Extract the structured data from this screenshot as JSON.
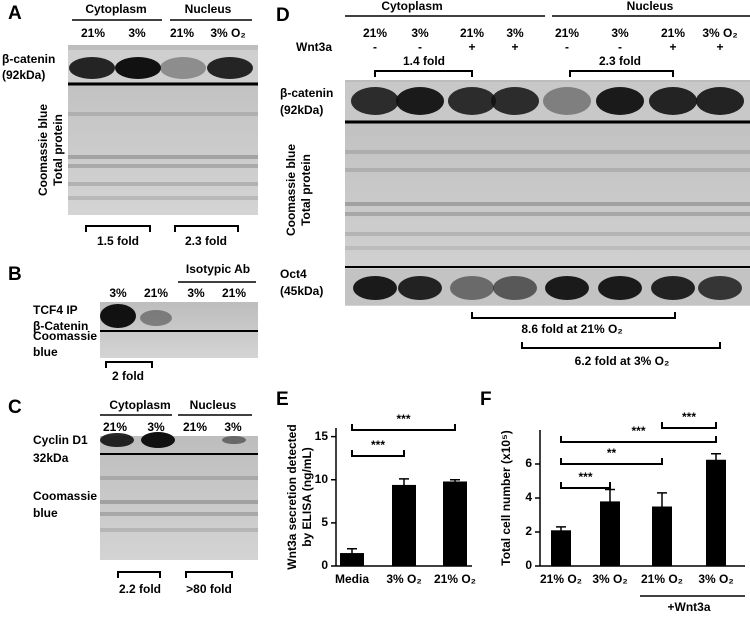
{
  "panels": {
    "A": {
      "label": "A",
      "headers": [
        "Cytoplasm",
        "Nucleus"
      ],
      "lanes": [
        "21%",
        "3%",
        "21%",
        "3% O₂"
      ],
      "rows": [
        "β-catenin",
        "(92kDa)"
      ],
      "stain": [
        "Coomassie blue",
        "Total protein"
      ],
      "folds": [
        "1.5 fold",
        "2.3 fold"
      ]
    },
    "B": {
      "label": "B",
      "headers": [
        "Isotypic Ab"
      ],
      "lanes": [
        "3%",
        "21%",
        "3%",
        "21%"
      ],
      "rows": [
        "TCF4 IP",
        "β-Catenin",
        "Coomassie",
        "blue"
      ],
      "folds": [
        "2 fold"
      ]
    },
    "C": {
      "label": "C",
      "headers": [
        "Cytoplasm",
        "Nucleus"
      ],
      "lanes": [
        "21%",
        "3%",
        "21%",
        "3%"
      ],
      "rows": [
        "Cyclin D1",
        "32kDa",
        "Coomassie",
        "blue"
      ],
      "folds": [
        "2.2 fold",
        ">80 fold"
      ]
    },
    "D": {
      "label": "D",
      "headers": [
        "Cytoplasm",
        "Nucleus"
      ],
      "lanes": [
        "21%",
        "3%",
        "21%",
        "3%",
        "21%",
        "3%",
        "21%",
        "3% O₂"
      ],
      "treatment": "Wnt3a",
      "signs": [
        "-",
        "-",
        "+",
        "+",
        "-",
        "-",
        "+",
        "+"
      ],
      "rows": [
        "β-catenin",
        "(92kDa)",
        "Oct4",
        "(45kDa)"
      ],
      "stain": [
        "Coomassie blue",
        "Total protein"
      ],
      "folds": [
        "1.4 fold",
        "2.3 fold",
        "8.6 fold at 21% O₂",
        "6.2 fold at 3% O₂"
      ]
    }
  },
  "chart_data": [
    {
      "type": "bar",
      "label": "E",
      "ylabel": [
        "Wnt3a secretion detected",
        "by ELISA (ng/mL)"
      ],
      "categories": [
        "Media",
        "3% O₂",
        "21% O₂"
      ],
      "series": [
        {
          "color": "#000000",
          "values": [
            1.5,
            9.4,
            9.8
          ],
          "errors": [
            0.5,
            0.7,
            0.2
          ]
        }
      ],
      "ylim": [
        0,
        16
      ],
      "yticks": [
        0,
        5,
        10,
        15
      ],
      "significance": [
        "***",
        "***"
      ]
    },
    {
      "type": "bar",
      "label": "F",
      "ylabel": [
        "Total cell number (x10⁵)"
      ],
      "categories": [
        "21% O₂",
        "3% O₂",
        "21% O₂",
        "3% O₂"
      ],
      "series": [
        {
          "color": "#000000",
          "values": [
            2.1,
            3.8,
            3.5,
            6.25
          ],
          "errors": [
            0.2,
            0.7,
            0.8,
            0.35
          ]
        }
      ],
      "ylim": [
        0,
        8
      ],
      "yticks": [
        0,
        2,
        4,
        6
      ],
      "significance": [
        "***",
        "**",
        "***",
        "***"
      ],
      "annotation": "+Wnt3a"
    }
  ]
}
